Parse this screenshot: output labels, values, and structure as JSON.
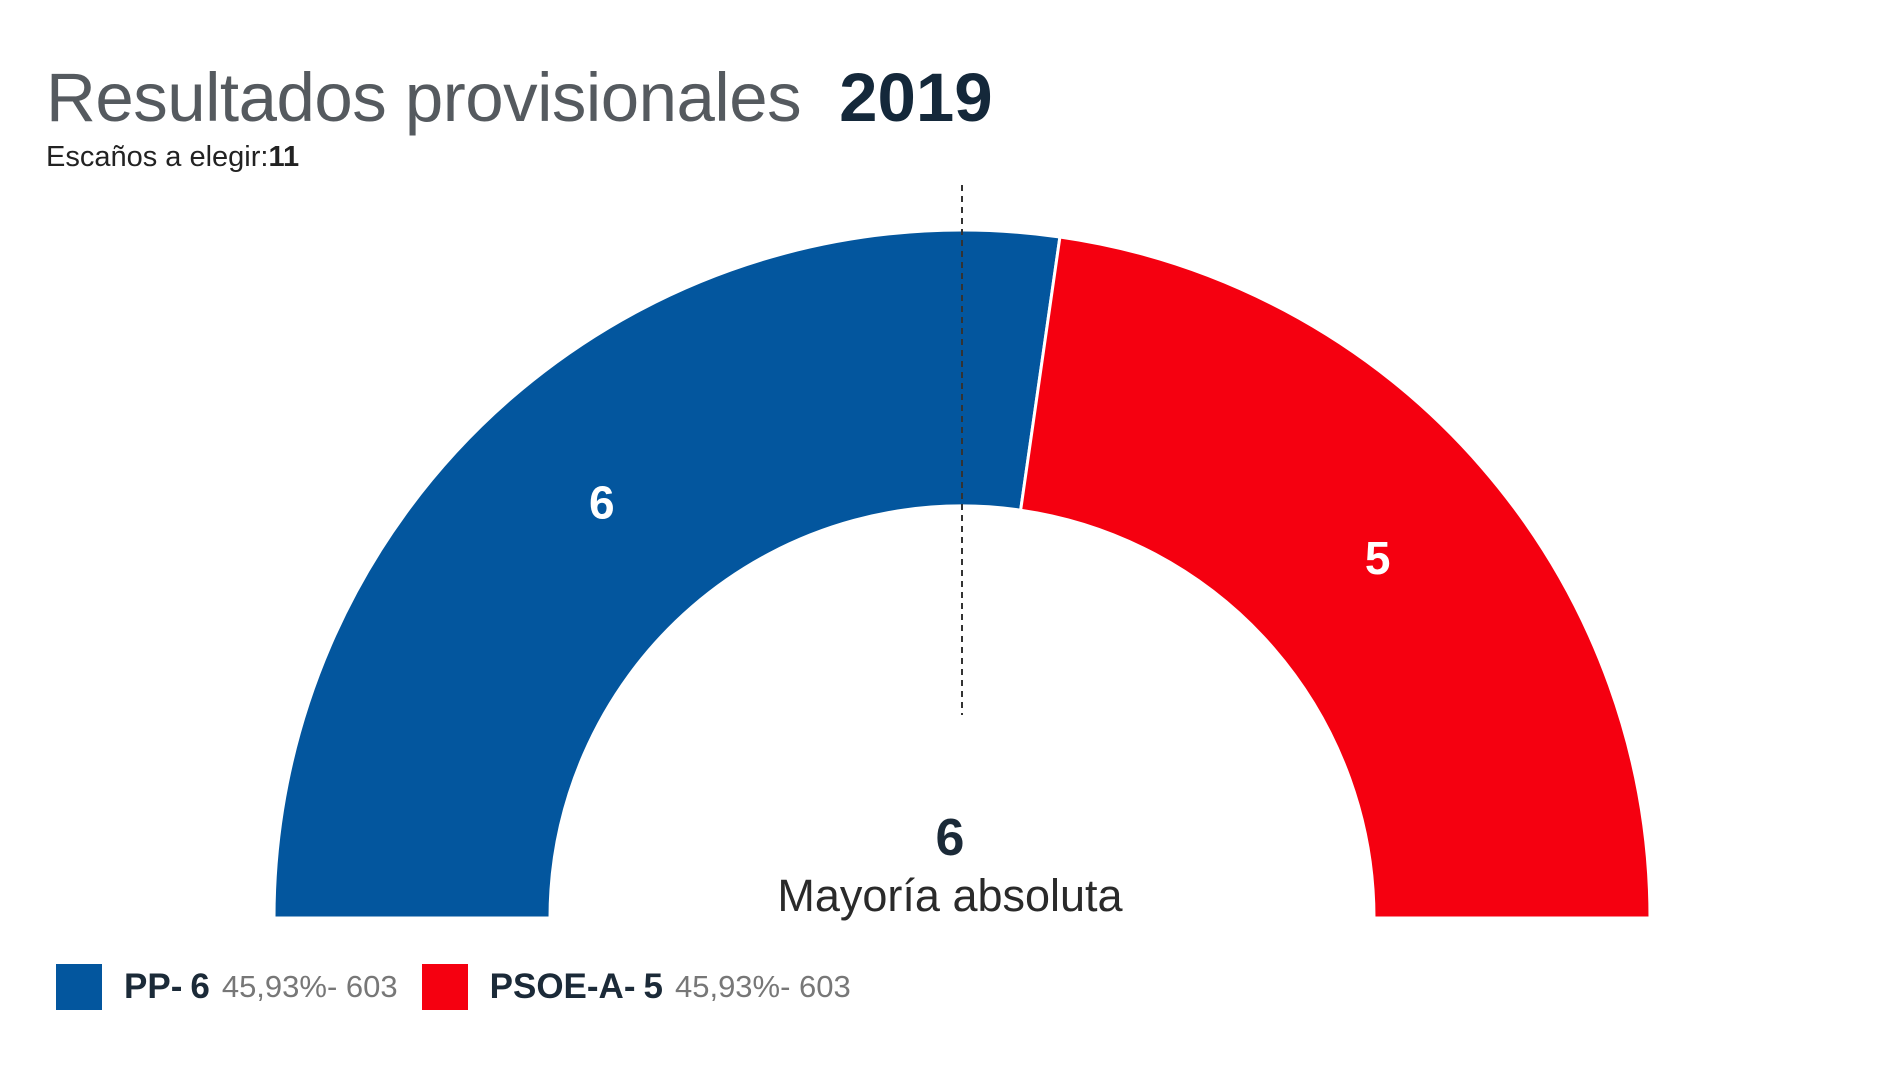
{
  "header": {
    "title": "Resultados provisionales",
    "year": "2019",
    "seats_label": "Escaños a elegir:",
    "seats_total": "11"
  },
  "majority": {
    "number": "6",
    "label": "Mayoría absoluta"
  },
  "chart_data": {
    "type": "pie",
    "variant": "half-donut (parliament)",
    "total_seats": 11,
    "majority": 6,
    "series": [
      {
        "name": "PP",
        "seats": 6,
        "percent": "45,93%",
        "votes": "603",
        "color": "#03569e",
        "label": "6"
      },
      {
        "name": "PSOE-A",
        "seats": 5,
        "percent": "45,93%",
        "votes": "603",
        "color": "#f50010",
        "label": "5"
      }
    ]
  },
  "legend": [
    {
      "name": "PP-",
      "seats": "6",
      "detail": "45,93%- 603",
      "color": "#03569e"
    },
    {
      "name": "PSOE-A-",
      "seats": "5",
      "detail": "45,93%- 603",
      "color": "#f50010"
    }
  ]
}
